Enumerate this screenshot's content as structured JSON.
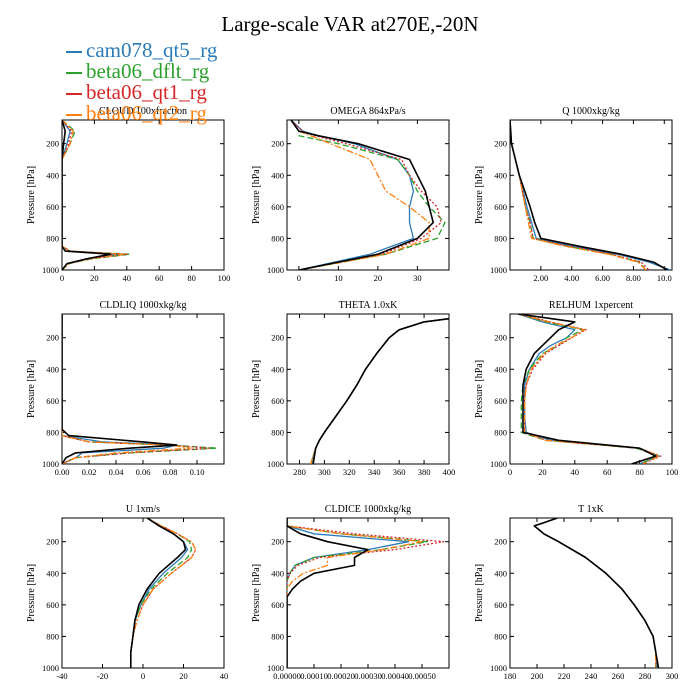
{
  "title": "Large-scale VAR at270E,-20N",
  "ylabel": "Pressure [hPa]",
  "legend": [
    {
      "name": "cam078_qt5_rg",
      "color": "#2b7bb9",
      "dash": "solid"
    },
    {
      "name": "beta06_dflt_rg",
      "color": "#2ca02c",
      "dash": "dash"
    },
    {
      "name": "beta06_qt1_rg",
      "color": "#d62728",
      "dash": "dot"
    },
    {
      "name": "beta06_qt2_rg",
      "color": "#ff7f0e",
      "dash": "dashdot"
    }
  ],
  "black_series_color": "#000000",
  "chart_data": [
    {
      "type": "line",
      "title": "CLOUD 100xfraction",
      "xlim": [
        0,
        100
      ],
      "xticks": [
        "0",
        "20",
        "40",
        "60",
        "80",
        "100"
      ],
      "ylim": [
        50,
        1000
      ],
      "yticks": [
        200,
        400,
        600,
        800,
        1000
      ],
      "y": [
        50,
        120,
        200,
        300,
        500,
        700,
        800,
        850,
        880,
        900,
        930,
        960,
        1000
      ],
      "series": [
        {
          "name": "black",
          "values": [
            0,
            2,
            1,
            0,
            0,
            0,
            0,
            0,
            2,
            30,
            15,
            3,
            0
          ]
        },
        {
          "name": "cam078_qt5_rg",
          "values": [
            0,
            5,
            3,
            0,
            0,
            0,
            0,
            0,
            5,
            35,
            15,
            3,
            0
          ]
        },
        {
          "name": "beta06_dflt_rg",
          "values": [
            0,
            8,
            5,
            0,
            0,
            0,
            0,
            0,
            5,
            42,
            18,
            4,
            0
          ]
        },
        {
          "name": "beta06_qt1_rg",
          "values": [
            0,
            6,
            4,
            0,
            0,
            0,
            0,
            0,
            5,
            40,
            17,
            4,
            0
          ]
        },
        {
          "name": "beta06_qt2_rg",
          "values": [
            0,
            7,
            5,
            0,
            0,
            0,
            0,
            0,
            5,
            38,
            16,
            4,
            0
          ]
        }
      ]
    },
    {
      "type": "line",
      "title": "OMEGA 864xPa/s",
      "xlim": [
        -3,
        38
      ],
      "xticks": [
        "0",
        "10",
        "20",
        "30"
      ],
      "ylim": [
        50,
        1000
      ],
      "yticks": [
        200,
        400,
        600,
        800,
        1000
      ],
      "y": [
        50,
        120,
        150,
        200,
        300,
        400,
        500,
        600,
        700,
        800,
        900,
        1000
      ],
      "series": [
        {
          "name": "black",
          "values": [
            -2,
            0,
            5,
            15,
            28,
            30,
            32,
            33,
            34,
            30,
            20,
            0
          ]
        },
        {
          "name": "cam078_qt5_rg",
          "values": [
            -2,
            1,
            5,
            14,
            25,
            28,
            29,
            28,
            28,
            29,
            18,
            0
          ]
        },
        {
          "name": "beta06_dflt_rg",
          "values": [
            -2,
            0,
            0,
            10,
            25,
            28,
            30,
            33,
            37,
            35,
            22,
            0
          ]
        },
        {
          "name": "beta06_qt1_rg",
          "values": [
            -2,
            1,
            4,
            12,
            26,
            28,
            31,
            35,
            36,
            31,
            21,
            0
          ]
        },
        {
          "name": "beta06_qt2_rg",
          "values": [
            -2,
            0,
            3,
            8,
            18,
            20,
            22,
            28,
            33,
            33,
            22,
            0
          ]
        }
      ]
    },
    {
      "type": "line",
      "title": "Q 1000xkg/kg",
      "xlim": [
        0,
        10.5
      ],
      "xticks": [
        "2.00",
        "4.00",
        "6.00",
        "8.00",
        "10.0"
      ],
      "ylim": [
        50,
        1000
      ],
      "yticks": [
        200,
        400,
        600,
        800,
        1000
      ],
      "y": [
        50,
        200,
        400,
        600,
        700,
        800,
        850,
        900,
        950,
        1000
      ],
      "series": [
        {
          "name": "black",
          "values": [
            0,
            0.1,
            0.6,
            1.3,
            1.6,
            2.0,
            4.5,
            7.2,
            9.3,
            10.2
          ]
        },
        {
          "name": "cam078_qt5_rg",
          "values": [
            0,
            0.1,
            0.6,
            1.1,
            1.4,
            1.7,
            4.0,
            7.0,
            9.0,
            10.4
          ]
        },
        {
          "name": "beta06_dflt_rg",
          "values": [
            0,
            0.1,
            0.6,
            1.0,
            1.3,
            1.5,
            3.7,
            6.5,
            8.4,
            8.8
          ]
        },
        {
          "name": "beta06_qt1_rg",
          "values": [
            0,
            0.1,
            0.6,
            1.0,
            1.3,
            1.5,
            3.8,
            6.6,
            8.5,
            9.0
          ]
        },
        {
          "name": "beta06_qt2_rg",
          "values": [
            0,
            0.1,
            0.6,
            1.0,
            1.2,
            1.4,
            3.6,
            6.4,
            8.3,
            8.8
          ]
        }
      ]
    },
    {
      "type": "line",
      "title": "CLDLIQ 1000xkg/kg",
      "xlim": [
        0,
        0.12
      ],
      "xticks": [
        "0.00",
        "0.02",
        "0.04",
        "0.06",
        "0.08",
        "0.10"
      ],
      "ylim": [
        50,
        1000
      ],
      "yticks": [
        200,
        400,
        600,
        800,
        1000
      ],
      "y": [
        50,
        700,
        780,
        820,
        860,
        880,
        900,
        930,
        960,
        1000
      ],
      "series": [
        {
          "name": "black",
          "values": [
            0,
            0,
            0,
            0.005,
            0.06,
            0.085,
            0.05,
            0.01,
            0.003,
            0
          ]
        },
        {
          "name": "cam078_qt5_rg",
          "values": [
            0,
            0,
            0,
            0,
            0.03,
            0.085,
            0.075,
            0.015,
            0.01,
            0
          ]
        },
        {
          "name": "beta06_dflt_rg",
          "values": [
            0,
            0,
            0,
            0,
            0.02,
            0.08,
            0.115,
            0.05,
            0.01,
            0
          ]
        },
        {
          "name": "beta06_qt1_rg",
          "values": [
            0,
            0,
            0,
            0,
            0.02,
            0.08,
            0.11,
            0.05,
            0.01,
            0
          ]
        },
        {
          "name": "beta06_qt2_rg",
          "values": [
            0,
            0,
            0,
            0,
            0.02,
            0.08,
            0.095,
            0.04,
            0.01,
            0
          ]
        }
      ]
    },
    {
      "type": "line",
      "title": "THETA 1.0xK",
      "xlim": [
        270,
        400
      ],
      "xticks": [
        "280",
        "300",
        "320",
        "340",
        "360",
        "380",
        "400"
      ],
      "ylim": [
        50,
        1000
      ],
      "yticks": [
        200,
        400,
        600,
        800,
        1000
      ],
      "y": [
        80,
        100,
        150,
        200,
        300,
        400,
        500,
        600,
        700,
        800,
        850,
        900,
        950,
        1000
      ],
      "series": [
        {
          "name": "black",
          "values": [
            400,
            380,
            360,
            352,
            342,
            333,
            326,
            318,
            309,
            300,
            296,
            293,
            292,
            291
          ]
        },
        {
          "name": "cam078_qt5_rg",
          "values": [
            400,
            380,
            360,
            352,
            342,
            333,
            326,
            318,
            309,
            300,
            296,
            293,
            291,
            290
          ]
        },
        {
          "name": "beta06_dflt_rg",
          "values": [
            400,
            380,
            360,
            352,
            342,
            333,
            326,
            318,
            309,
            300,
            296,
            293,
            291,
            289
          ]
        },
        {
          "name": "beta06_qt1_rg",
          "values": [
            400,
            380,
            360,
            352,
            342,
            333,
            326,
            318,
            309,
            300,
            296,
            293,
            291,
            289
          ]
        },
        {
          "name": "beta06_qt2_rg",
          "values": [
            400,
            380,
            360,
            352,
            342,
            333,
            326,
            318,
            309,
            300,
            296,
            293,
            291,
            289
          ]
        }
      ]
    },
    {
      "type": "line",
      "title": "RELHUM 1xpercent",
      "xlim": [
        0,
        100
      ],
      "xticks": [
        "0",
        "20",
        "40",
        "60",
        "80",
        "100"
      ],
      "ylim": [
        50,
        1000
      ],
      "yticks": [
        200,
        400,
        600,
        800,
        1000
      ],
      "y": [
        50,
        100,
        150,
        200,
        250,
        300,
        400,
        500,
        600,
        700,
        800,
        850,
        900,
        950,
        1000
      ],
      "series": [
        {
          "name": "black",
          "values": [
            5,
            40,
            30,
            25,
            20,
            15,
            10,
            8,
            8,
            8,
            8,
            30,
            80,
            90,
            75
          ]
        },
        {
          "name": "cam078_qt5_rg",
          "values": [
            5,
            20,
            40,
            35,
            25,
            18,
            12,
            9,
            9,
            9,
            10,
            25,
            80,
            92,
            80
          ]
        },
        {
          "name": "beta06_dflt_rg",
          "values": [
            5,
            22,
            45,
            35,
            30,
            20,
            12,
            8,
            7,
            7,
            7,
            22,
            78,
            92,
            80
          ]
        },
        {
          "name": "beta06_qt1_rg",
          "values": [
            5,
            25,
            47,
            38,
            30,
            22,
            14,
            10,
            9,
            9,
            9,
            22,
            80,
            93,
            82
          ]
        },
        {
          "name": "beta06_qt2_rg",
          "values": [
            5,
            24,
            46,
            38,
            28,
            21,
            13,
            10,
            9,
            9,
            9,
            22,
            80,
            92,
            82
          ]
        }
      ]
    },
    {
      "type": "line",
      "title": "U 1xm/s",
      "xlim": [
        -40,
        40
      ],
      "xticks": [
        "-40",
        "-20",
        "0",
        "20",
        "40"
      ],
      "ylim": [
        50,
        1000
      ],
      "yticks": [
        200,
        400,
        600,
        800,
        1000
      ],
      "y": [
        50,
        100,
        150,
        200,
        250,
        300,
        400,
        500,
        600,
        700,
        800,
        900,
        1000
      ],
      "series": [
        {
          "name": "black",
          "values": [
            2,
            8,
            15,
            20,
            21,
            17,
            8,
            2,
            -2,
            -4,
            -5,
            -6,
            -6
          ]
        },
        {
          "name": "cam078_qt5_rg",
          "values": [
            2,
            8,
            15,
            20,
            22,
            19,
            10,
            3,
            -1,
            -4,
            -5,
            -6,
            -6
          ]
        },
        {
          "name": "beta06_dflt_rg",
          "values": [
            2,
            9,
            17,
            23,
            24,
            22,
            12,
            4,
            -1,
            -4,
            -5,
            -6,
            -6
          ]
        },
        {
          "name": "beta06_qt1_rg",
          "values": [
            2,
            9,
            17,
            24,
            26,
            24,
            14,
            5,
            0,
            -3,
            -5,
            -6,
            -6
          ]
        },
        {
          "name": "beta06_qt2_rg",
          "values": [
            2,
            9,
            17,
            24,
            26,
            24,
            14,
            5,
            0,
            -3,
            -5,
            -6,
            -6
          ]
        }
      ]
    },
    {
      "type": "line",
      "title": "CLDICE 1000xkg/kg",
      "xlim": [
        0,
        0.0006
      ],
      "xticks": [
        "0.00000",
        "0.00010",
        "0.00020",
        "0.00030",
        "0.00040",
        "0.00050"
      ],
      "ylim": [
        50,
        1000
      ],
      "yticks": [
        200,
        400,
        600,
        800,
        1000
      ],
      "y": [
        50,
        100,
        150,
        200,
        250,
        300,
        350,
        400,
        450,
        500,
        550,
        600,
        1000
      ],
      "series": [
        {
          "name": "black",
          "values": [
            0,
            0,
            5e-05,
            0.00015,
            0.0003,
            0.00025,
            0.00025,
            0.0001,
            5e-05,
            2e-05,
            0,
            0,
            0
          ]
        },
        {
          "name": "cam078_qt5_rg",
          "values": [
            0,
            0,
            0.0001,
            0.00045,
            0.0003,
            0.0001,
            3e-05,
            1e-05,
            0,
            0,
            0,
            0,
            0
          ]
        },
        {
          "name": "beta06_dflt_rg",
          "values": [
            0,
            0,
            0.0002,
            0.00052,
            0.00035,
            0.0001,
            3e-05,
            1e-05,
            0,
            0,
            0,
            0,
            0
          ]
        },
        {
          "name": "beta06_qt1_rg",
          "values": [
            0,
            0,
            0.00025,
            0.00058,
            0.0004,
            0.00012,
            4e-05,
            1e-05,
            0,
            0,
            0,
            0,
            0
          ]
        },
        {
          "name": "beta06_qt2_rg",
          "values": [
            0,
            0,
            0.0002,
            0.0005,
            0.00035,
            0.00015,
            0.00015,
            6e-05,
            2e-05,
            0,
            0,
            0,
            0
          ]
        }
      ]
    },
    {
      "type": "line",
      "title": "T 1xK",
      "xlim": [
        180,
        300
      ],
      "xticks": [
        "180",
        "200",
        "220",
        "240",
        "260",
        "280",
        "300"
      ],
      "ylim": [
        50,
        1000
      ],
      "yticks": [
        200,
        400,
        600,
        800,
        1000
      ],
      "y": [
        50,
        80,
        100,
        150,
        200,
        300,
        400,
        500,
        600,
        700,
        800,
        900,
        1000
      ],
      "series": [
        {
          "name": "black",
          "values": [
            215,
            205,
            198,
            205,
            216,
            236,
            251,
            263,
            272,
            280,
            286,
            288,
            290
          ]
        },
        {
          "name": "cam078_qt5_rg",
          "values": [
            215,
            205,
            198,
            205,
            216,
            236,
            251,
            263,
            272,
            280,
            286,
            288,
            289
          ]
        },
        {
          "name": "beta06_dflt_rg",
          "values": [
            215,
            205,
            198,
            205,
            216,
            236,
            251,
            263,
            272,
            280,
            286,
            288,
            288
          ]
        },
        {
          "name": "beta06_qt1_rg",
          "values": [
            215,
            205,
            198,
            205,
            216,
            236,
            251,
            263,
            272,
            280,
            286,
            288,
            288
          ]
        },
        {
          "name": "beta06_qt2_rg",
          "values": [
            215,
            205,
            198,
            205,
            216,
            236,
            251,
            263,
            272,
            280,
            286,
            288,
            288
          ]
        }
      ]
    }
  ]
}
